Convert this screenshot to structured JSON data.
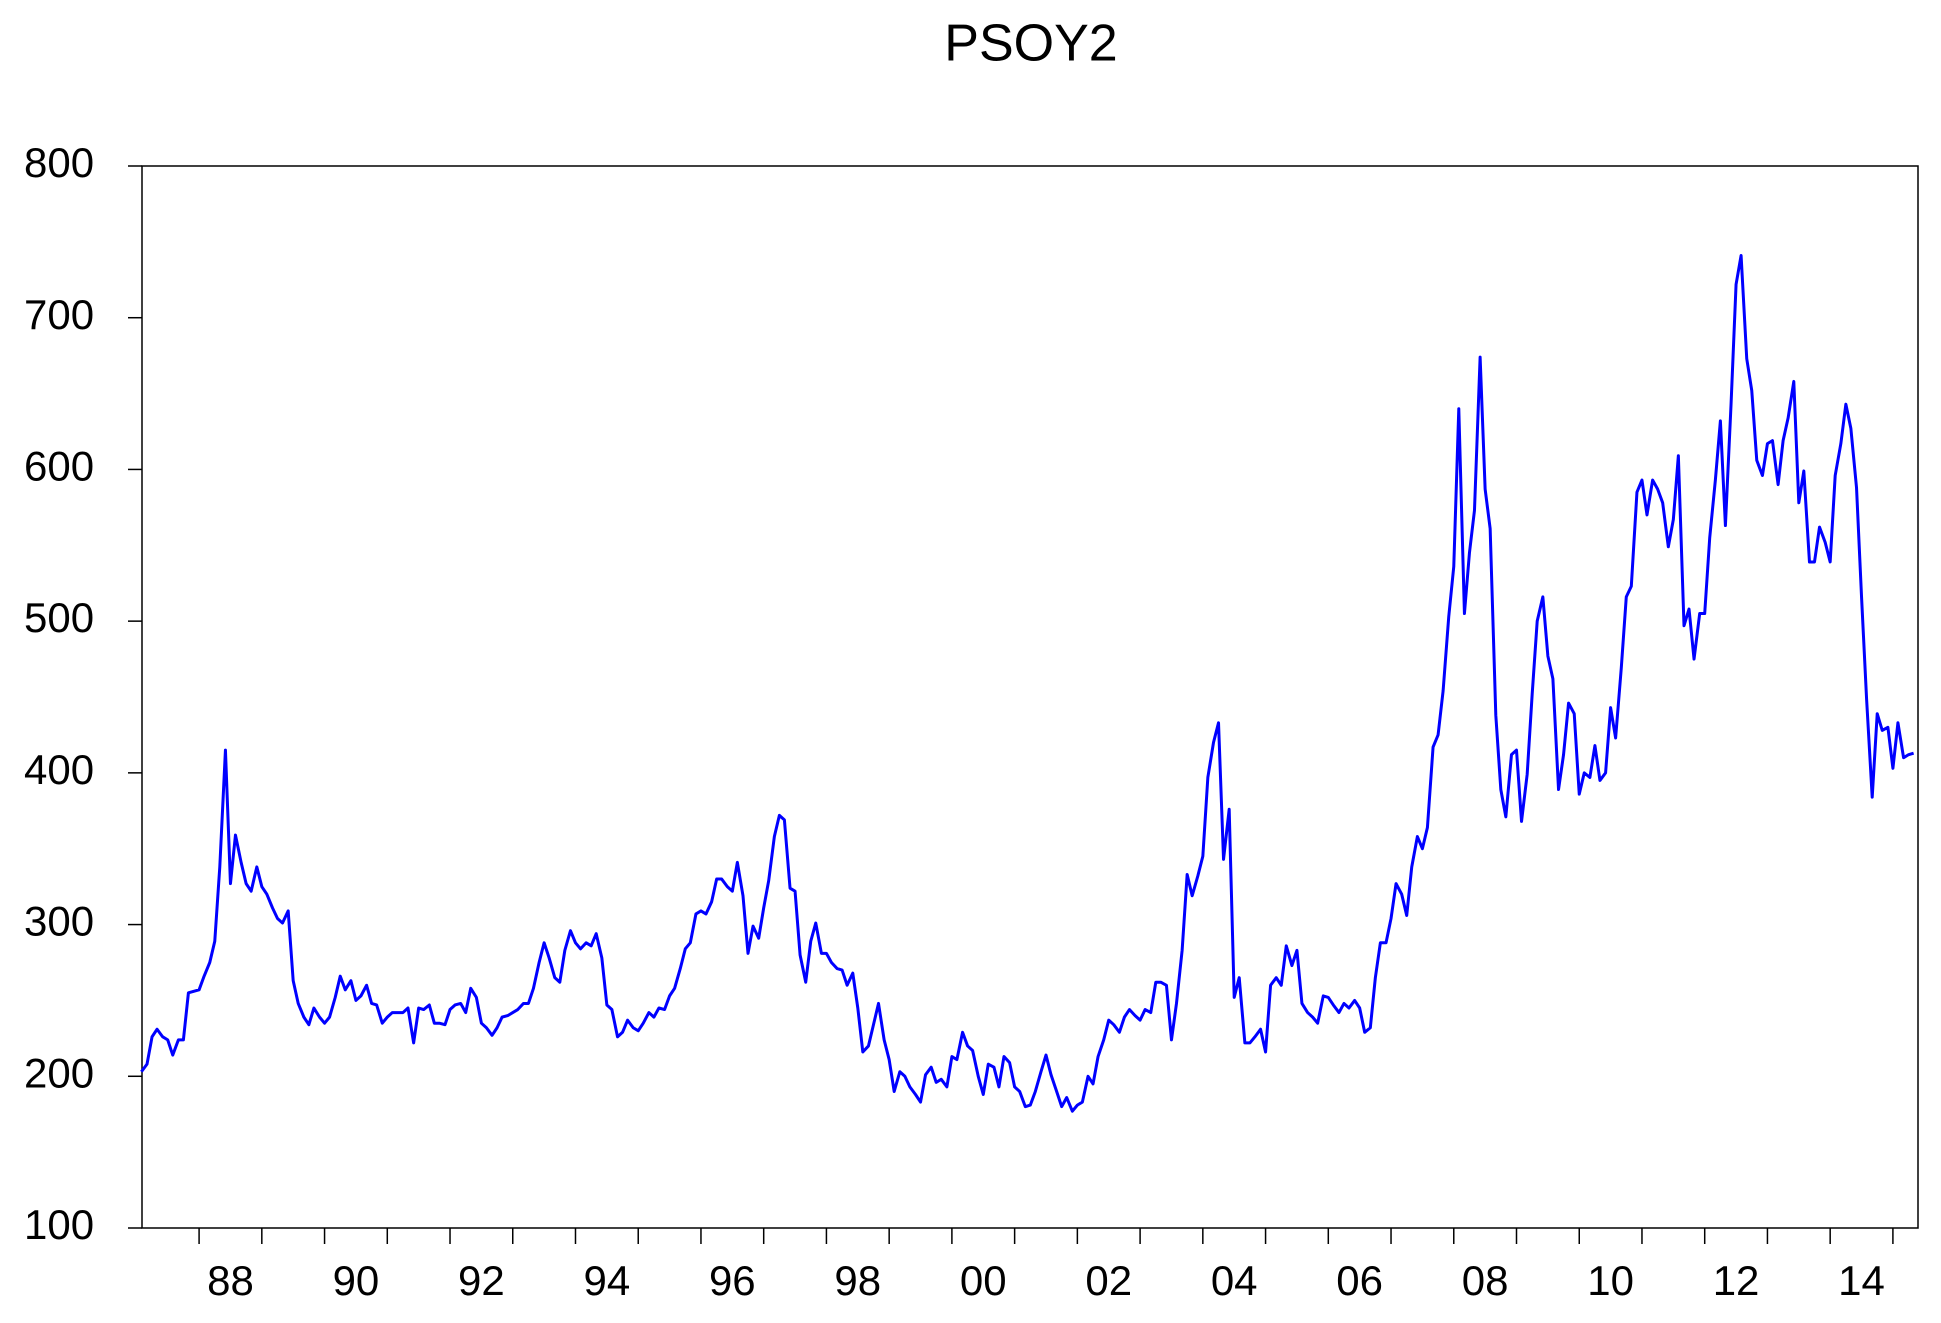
{
  "chart_data": {
    "type": "line",
    "title": "PSOY2",
    "color": "#0000ff",
    "x": [
      1987.08,
      1987.17,
      1987.25,
      1987.33,
      1987.42,
      1987.5,
      1987.58,
      1987.67,
      1987.75,
      1987.83,
      1988,
      1988.08,
      1988.17,
      1988.25,
      1988.33,
      1988.42,
      1988.5,
      1988.58,
      1988.67,
      1988.75,
      1988.83,
      1988.92,
      1989,
      1989.08,
      1989.17,
      1989.25,
      1989.33,
      1989.42,
      1989.5,
      1989.58,
      1989.67,
      1989.75,
      1989.83,
      1989.92,
      1990,
      1990.08,
      1990.17,
      1990.25,
      1990.33,
      1990.42,
      1990.5,
      1990.58,
      1990.67,
      1990.75,
      1990.83,
      1990.92,
      1991,
      1991.08,
      1991.17,
      1991.25,
      1991.33,
      1991.42,
      1991.5,
      1991.58,
      1991.67,
      1991.75,
      1991.83,
      1991.92,
      1992,
      1992.08,
      1992.17,
      1992.25,
      1992.33,
      1992.42,
      1992.5,
      1992.58,
      1992.67,
      1992.75,
      1992.83,
      1992.92,
      1993,
      1993.08,
      1993.17,
      1993.25,
      1993.33,
      1993.42,
      1993.5,
      1993.58,
      1993.67,
      1993.75,
      1993.83,
      1993.92,
      1994,
      1994.08,
      1994.17,
      1994.25,
      1994.33,
      1994.42,
      1994.5,
      1994.58,
      1994.67,
      1994.75,
      1994.83,
      1994.92,
      1995,
      1995.08,
      1995.17,
      1995.25,
      1995.33,
      1995.42,
      1995.5,
      1995.58,
      1995.67,
      1995.75,
      1995.83,
      1995.92,
      1996,
      1996.08,
      1996.17,
      1996.25,
      1996.33,
      1996.42,
      1996.5,
      1996.58,
      1996.67,
      1996.75,
      1996.83,
      1996.92,
      1997,
      1997.08,
      1997.17,
      1997.25,
      1997.33,
      1997.42,
      1997.5,
      1997.58,
      1997.67,
      1997.75,
      1997.83,
      1997.92,
      1998,
      1998.08,
      1998.17,
      1998.25,
      1998.33,
      1998.42,
      1998.5,
      1998.58,
      1998.67,
      1998.75,
      1998.83,
      1998.92,
      1999,
      1999.08,
      1999.17,
      1999.25,
      1999.33,
      1999.42,
      1999.5,
      1999.58,
      1999.67,
      1999.75,
      1999.83,
      1999.92,
      2000,
      2000.08,
      2000.17,
      2000.25,
      2000.33,
      2000.42,
      2000.5,
      2000.58,
      2000.67,
      2000.75,
      2000.83,
      2000.92,
      2001,
      2001.08,
      2001.17,
      2001.25,
      2001.33,
      2001.42,
      2001.5,
      2001.58,
      2001.67,
      2001.75,
      2001.83,
      2001.92,
      2002,
      2002.08,
      2002.17,
      2002.25,
      2002.33,
      2002.42,
      2002.5,
      2002.58,
      2002.67,
      2002.75,
      2002.83,
      2002.92,
      2003,
      2003.08,
      2003.17,
      2003.25,
      2003.33,
      2003.42,
      2003.5,
      2003.58,
      2003.67,
      2003.75,
      2003.83,
      2003.92,
      2004,
      2004.08,
      2004.17,
      2004.25,
      2004.33,
      2004.42,
      2004.5,
      2004.58,
      2004.67,
      2004.75,
      2004.83,
      2004.92,
      2005,
      2005.08,
      2005.17,
      2005.25,
      2005.33,
      2005.42,
      2005.5,
      2005.58,
      2005.67,
      2005.75,
      2005.83,
      2005.92,
      2006,
      2006.08,
      2006.17,
      2006.25,
      2006.33,
      2006.42,
      2006.5,
      2006.58,
      2006.67,
      2006.75,
      2006.83,
      2006.92,
      2007,
      2007.08,
      2007.17,
      2007.25,
      2007.33,
      2007.42,
      2007.5,
      2007.58,
      2007.67,
      2007.75,
      2007.83,
      2007.92,
      2008,
      2008.08,
      2008.17,
      2008.25,
      2008.33,
      2008.42,
      2008.5,
      2008.58,
      2008.67,
      2008.75,
      2008.83,
      2008.92,
      2009,
      2009.08,
      2009.17,
      2009.25,
      2009.33,
      2009.42,
      2009.5,
      2009.58,
      2009.67,
      2009.75,
      2009.83,
      2009.92,
      2010,
      2010.08,
      2010.17,
      2010.25,
      2010.33,
      2010.42,
      2010.5,
      2010.58,
      2010.67,
      2010.75,
      2010.83,
      2010.92,
      2011,
      2011.08,
      2011.17,
      2011.25,
      2011.33,
      2011.42,
      2011.5,
      2011.58,
      2011.67,
      2011.75,
      2011.83,
      2011.92,
      2012,
      2012.08,
      2012.17,
      2012.25,
      2012.33,
      2012.42,
      2012.5,
      2012.58,
      2012.67,
      2012.75,
      2012.83,
      2012.92,
      2013,
      2013.08,
      2013.17,
      2013.25,
      2013.33,
      2013.42,
      2013.5,
      2013.58,
      2013.67,
      2013.75,
      2013.83,
      2013.92,
      2014,
      2014.08,
      2014.17,
      2014.25,
      2014.33,
      2014.42,
      2014.5,
      2014.58,
      2014.67,
      2014.75,
      2014.83,
      2014.92,
      2015,
      2015.08,
      2015.17,
      2015.25,
      2015.33
    ],
    "values": [
      203,
      208,
      226,
      231,
      226,
      224,
      214,
      224,
      224,
      255,
      257,
      266,
      275,
      289,
      338,
      415,
      327,
      359,
      341,
      327,
      322,
      338,
      325,
      320,
      311,
      304,
      301,
      309,
      263,
      248,
      239,
      234,
      245,
      239,
      235,
      239,
      252,
      266,
      257,
      263,
      250,
      253,
      260,
      248,
      247,
      235,
      239,
      242,
      242,
      242,
      245,
      222,
      245,
      244,
      247,
      235,
      235,
      234,
      244,
      247,
      248,
      242,
      258,
      252,
      235,
      232,
      227,
      232,
      239,
      240,
      242,
      244,
      248,
      248,
      258,
      275,
      288,
      278,
      265,
      262,
      283,
      296,
      288,
      284,
      288,
      286,
      294,
      278,
      247,
      244,
      226,
      229,
      237,
      232,
      230,
      235,
      242,
      239,
      245,
      244,
      253,
      258,
      271,
      284,
      288,
      307,
      309,
      307,
      315,
      330,
      330,
      325,
      322,
      341,
      319,
      281,
      299,
      291,
      311,
      329,
      358,
      372,
      369,
      324,
      322,
      280,
      262,
      289,
      301,
      281,
      281,
      275,
      271,
      270,
      260,
      268,
      245,
      216,
      220,
      234,
      248,
      224,
      211,
      190,
      203,
      200,
      193,
      188,
      183,
      201,
      206,
      196,
      198,
      193,
      213,
      211,
      229,
      220,
      217,
      200,
      188,
      208,
      206,
      193,
      213,
      209,
      193,
      190,
      180,
      181,
      190,
      203,
      214,
      201,
      190,
      180,
      186,
      177,
      181,
      183,
      200,
      195,
      213,
      224,
      237,
      234,
      229,
      239,
      244,
      240,
      237,
      244,
      242,
      262,
      262,
      260,
      224,
      248,
      283,
      333,
      319,
      332,
      345,
      397,
      420,
      433,
      343,
      376,
      252,
      265,
      222,
      222,
      226,
      231,
      216,
      260,
      265,
      260,
      286,
      273,
      283,
      248,
      242,
      239,
      235,
      253,
      252,
      247,
      242,
      248,
      245,
      250,
      245,
      229,
      232,
      265,
      288,
      288,
      304,
      327,
      320,
      306,
      338,
      358,
      350,
      364,
      417,
      425,
      454,
      503,
      536,
      640,
      505,
      545,
      573,
      674,
      587,
      561,
      438,
      389,
      371,
      412,
      415,
      368,
      399,
      452,
      500,
      516,
      477,
      462,
      389,
      412,
      446,
      439,
      386,
      400,
      397,
      418,
      395,
      400,
      443,
      423,
      469,
      516,
      523,
      585,
      593,
      570,
      593,
      587,
      578,
      549,
      567,
      609,
      497,
      508,
      475,
      505,
      505,
      555,
      593,
      632,
      563,
      643,
      722,
      741,
      673,
      652,
      606,
      596,
      617,
      619,
      590,
      619,
      634,
      658,
      578,
      599,
      539,
      539,
      562,
      552,
      539,
      596,
      617,
      643,
      627,
      588,
      516,
      449,
      384,
      439,
      428,
      430,
      403,
      433,
      410,
      412,
      413
    ],
    "xlim": [
      1987.09,
      2015.4
    ],
    "xticks": [
      {
        "value": 1988,
        "label": "88"
      },
      {
        "value": 1990,
        "label": "90"
      },
      {
        "value": 1992,
        "label": "92"
      },
      {
        "value": 1994,
        "label": "94"
      },
      {
        "value": 1996,
        "label": "96"
      },
      {
        "value": 1998,
        "label": "98"
      },
      {
        "value": 2000,
        "label": "00"
      },
      {
        "value": 2002,
        "label": "02"
      },
      {
        "value": 2004,
        "label": "04"
      },
      {
        "value": 2006,
        "label": "06"
      },
      {
        "value": 2008,
        "label": "08"
      },
      {
        "value": 2010,
        "label": "10"
      },
      {
        "value": 2012,
        "label": "12"
      },
      {
        "value": 2014,
        "label": "14"
      }
    ],
    "xminorticks": [
      1989,
      1991,
      1993,
      1995,
      1997,
      1999,
      2001,
      2003,
      2005,
      2007,
      2009,
      2011,
      2013,
      2015
    ],
    "ylim": [
      100,
      800
    ],
    "yticks": [
      100,
      200,
      300,
      400,
      500,
      600,
      700,
      800
    ]
  }
}
